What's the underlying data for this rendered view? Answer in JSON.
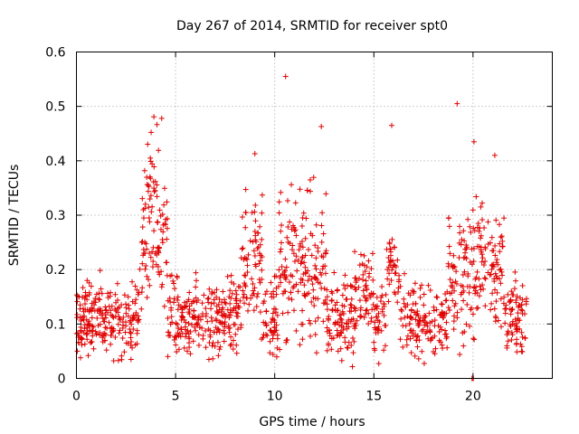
{
  "chart_data": {
    "type": "scatter",
    "title": "Day 267 of 2014, SRMTID for receiver spt0",
    "xlabel": "GPS time / hours",
    "ylabel": "SRMTID / TECUs",
    "xlim": [
      0,
      24
    ],
    "ylim": [
      0,
      0.6
    ],
    "xticks": [
      0,
      5,
      10,
      15,
      20
    ],
    "xtick_labels": [
      "0",
      "5",
      "10",
      "15",
      "20"
    ],
    "yticks": [
      0,
      0.1,
      0.2,
      0.3,
      0.4,
      0.5,
      0.6
    ],
    "ytick_labels": [
      "0",
      "0.1",
      "0.2",
      "0.3",
      "0.4",
      "0.5",
      "0.6"
    ],
    "grid": true,
    "marker": "+",
    "color": "#e00000",
    "series": [
      {
        "name": "spt0",
        "x": [
          0.0,
          0.1,
          0.2,
          0.3,
          0.4,
          0.5,
          0.6,
          0.7,
          0.8,
          0.9,
          1.0,
          1.1,
          1.2,
          1.3,
          1.4,
          1.5,
          1.6,
          1.7,
          1.8,
          1.9,
          2.0,
          2.1,
          2.2,
          2.3,
          2.4,
          2.5,
          2.6,
          2.7,
          2.8,
          2.9,
          3.0,
          3.1,
          3.2,
          3.3,
          3.4,
          3.5,
          3.6,
          3.7,
          3.8,
          3.9,
          4.0,
          4.1,
          4.2,
          4.3,
          4.4,
          4.5,
          4.6,
          4.7,
          4.8,
          4.9,
          5.0,
          5.1,
          5.2,
          5.3,
          5.4,
          5.5,
          5.6,
          5.7,
          5.8,
          5.9,
          6.0,
          6.1,
          6.2,
          6.3,
          6.4,
          6.5,
          6.6,
          6.7,
          6.8,
          6.9,
          7.0,
          7.1,
          7.2,
          7.3,
          7.4,
          7.5,
          7.6,
          7.7,
          7.8,
          7.9,
          8.0,
          8.1,
          8.2,
          8.3,
          8.4,
          8.5,
          8.6,
          8.7,
          8.8,
          8.9,
          9.0,
          9.1,
          9.2,
          9.3,
          9.4,
          9.5,
          9.6,
          9.7,
          9.8,
          9.9,
          10.0,
          10.1,
          10.2,
          10.3,
          10.4,
          10.5,
          10.6,
          10.7,
          10.8,
          10.9,
          11.0,
          11.1,
          11.2,
          11.3,
          11.4,
          11.5,
          11.6,
          11.7,
          11.8,
          11.9,
          12.0,
          12.1,
          12.2,
          12.3,
          12.4,
          12.5,
          12.6,
          12.7,
          12.8,
          12.9,
          13.0,
          13.1,
          13.2,
          13.3,
          13.4,
          13.5,
          13.6,
          13.7,
          13.8,
          13.9,
          14.0,
          14.1,
          14.2,
          14.3,
          14.4,
          14.5,
          14.6,
          14.7,
          14.8,
          14.9,
          15.0,
          15.1,
          15.2,
          15.3,
          15.4,
          15.5,
          15.6,
          15.7,
          15.8,
          15.9,
          16.0,
          16.1,
          16.2,
          16.3,
          16.4,
          16.5,
          16.6,
          16.7,
          16.8,
          16.9,
          17.0,
          17.1,
          17.2,
          17.3,
          17.4,
          17.5,
          17.6,
          17.7,
          17.8,
          17.9,
          18.0,
          18.1,
          18.2,
          18.3,
          18.4,
          18.5,
          18.6,
          18.7,
          18.8,
          18.9,
          19.0,
          19.1,
          19.2,
          19.3,
          19.4,
          19.5,
          19.6,
          19.7,
          19.8,
          19.9,
          20.0,
          20.1,
          20.2,
          20.3,
          20.4,
          20.5,
          20.6,
          20.7,
          20.8,
          20.9,
          21.0,
          21.1,
          21.2,
          21.3,
          21.4,
          21.5,
          21.6,
          21.7,
          21.8,
          21.9,
          22.0,
          22.1,
          22.2,
          22.3,
          22.4,
          22.5,
          22.6,
          22.7,
          0.05,
          0.15,
          0.08,
          0.06,
          0.12,
          0.18,
          0.09,
          0.11,
          0.04,
          0.07,
          0.16,
          0.1,
          0.13,
          0.19,
          0.08,
          0.12,
          0.06,
          0.17,
          0.11,
          0.09,
          0.14,
          0.07,
          0.1,
          0.13,
          0.18,
          0.05,
          0.16,
          0.09,
          0.12,
          0.07,
          0.15,
          0.11,
          0.06,
          0.14,
          0.1,
          0.19,
          0.08,
          0.13,
          0.16,
          0.12,
          0.09,
          0.07,
          0.15,
          0.11,
          0.14,
          0.08,
          0.1,
          0.17,
          0.06,
          0.13,
          0.09,
          0.12,
          0.16,
          0.1,
          0.07,
          0.14,
          0.11,
          0.08,
          0.18,
          0.12,
          0.1,
          0.15,
          0.09,
          0.13,
          0.2,
          0.08,
          0.12,
          0.17,
          0.1,
          0.14,
          0.22,
          0.11,
          0.16,
          0.09,
          0.13,
          0.19,
          0.12,
          0.08,
          0.15,
          0.21,
          0.1,
          0.14,
          0.17,
          0.11,
          0.09,
          0.13,
          0.18,
          0.12,
          0.16,
          0.1,
          0.07,
          0.14,
          0.12,
          0.19,
          0.11,
          0.09,
          0.16,
          0.13,
          0.1,
          0.15,
          0.22,
          0.28,
          0.18,
          0.25,
          0.3,
          0.2,
          0.16,
          0.24,
          0.35,
          0.19,
          0.27,
          0.22,
          0.17,
          0.29,
          0.21,
          0.14,
          0.25,
          0.32,
          0.18,
          0.23,
          0.12,
          0.15,
          0.19,
          0.1,
          0.14,
          0.26,
          0.36,
          0.44,
          0.3,
          0.22,
          0.48,
          0.34,
          0.4,
          0.28,
          0.2,
          0.38,
          0.25,
          0.32,
          0.42,
          0.18,
          0.24,
          0.35,
          0.27,
          0.21,
          0.16,
          0.43,
          0.31,
          0.26,
          0.37,
          0.23,
          0.14,
          0.19,
          0.29,
          0.17,
          0.12
        ],
        "note": "point cloud"
      }
    ]
  }
}
